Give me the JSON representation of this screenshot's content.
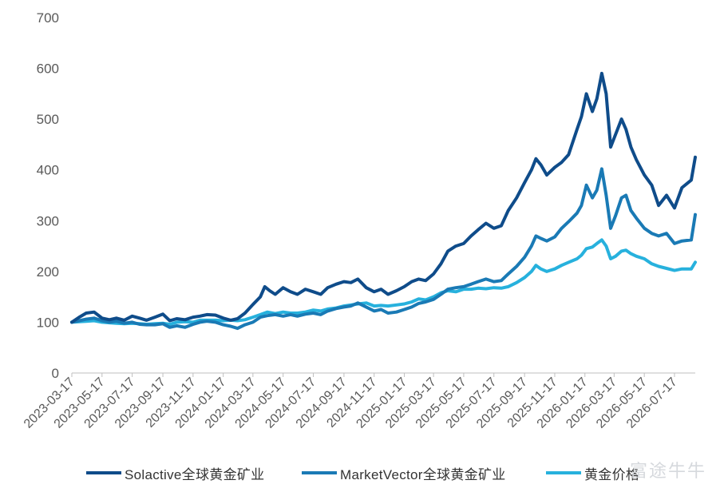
{
  "chart_data": {
    "type": "line",
    "title": "",
    "xlabel": "",
    "ylabel": "",
    "ylim": [
      0,
      700
    ],
    "yticks": [
      0,
      100,
      200,
      300,
      400,
      500,
      600,
      700
    ],
    "x_tick_labels": [
      "2023-03-17",
      "2023-05-17",
      "2023-07-17",
      "2023-09-17",
      "2023-11-17",
      "2024-01-17",
      "2024-03-17",
      "2024-05-17",
      "2024-07-17",
      "2024-09-17",
      "2024-11-17",
      "2025-01-17",
      "2025-03-17",
      "2025-05-17",
      "2025-07-17",
      "2025-09-17",
      "2025-11-17",
      "2026-01-17",
      "2026-03-17",
      "2026-05-17",
      "2026-07-17"
    ],
    "x_start": "2023-03-17",
    "x_end": "2026-08-28",
    "grid": false,
    "legend_position": "bottom",
    "series": [
      {
        "name": "Solactive全球黄金矿业",
        "color": "#0f4c8a",
        "points": [
          [
            "2023-03-17",
            100
          ],
          [
            "2023-04-01",
            110
          ],
          [
            "2023-04-15",
            118
          ],
          [
            "2023-05-01",
            120
          ],
          [
            "2023-05-17",
            108
          ],
          [
            "2023-06-01",
            105
          ],
          [
            "2023-06-15",
            108
          ],
          [
            "2023-07-01",
            104
          ],
          [
            "2023-07-17",
            112
          ],
          [
            "2023-08-01",
            108
          ],
          [
            "2023-08-15",
            104
          ],
          [
            "2023-09-01",
            110
          ],
          [
            "2023-09-17",
            116
          ],
          [
            "2023-10-01",
            103
          ],
          [
            "2023-10-15",
            107
          ],
          [
            "2023-11-01",
            105
          ],
          [
            "2023-11-17",
            110
          ],
          [
            "2023-12-01",
            112
          ],
          [
            "2023-12-15",
            115
          ],
          [
            "2024-01-01",
            114
          ],
          [
            "2024-01-17",
            108
          ],
          [
            "2024-02-01",
            104
          ],
          [
            "2024-02-15",
            107
          ],
          [
            "2024-03-01",
            118
          ],
          [
            "2024-03-17",
            135
          ],
          [
            "2024-04-01",
            150
          ],
          [
            "2024-04-10",
            170
          ],
          [
            "2024-04-20",
            162
          ],
          [
            "2024-05-01",
            155
          ],
          [
            "2024-05-17",
            168
          ],
          [
            "2024-06-01",
            160
          ],
          [
            "2024-06-15",
            155
          ],
          [
            "2024-07-01",
            165
          ],
          [
            "2024-07-17",
            160
          ],
          [
            "2024-08-01",
            155
          ],
          [
            "2024-08-15",
            168
          ],
          [
            "2024-09-01",
            175
          ],
          [
            "2024-09-17",
            180
          ],
          [
            "2024-10-01",
            178
          ],
          [
            "2024-10-15",
            185
          ],
          [
            "2024-11-01",
            168
          ],
          [
            "2024-11-17",
            160
          ],
          [
            "2024-12-01",
            165
          ],
          [
            "2024-12-15",
            155
          ],
          [
            "2025-01-01",
            162
          ],
          [
            "2025-01-17",
            170
          ],
          [
            "2025-02-01",
            180
          ],
          [
            "2025-02-15",
            185
          ],
          [
            "2025-03-01",
            182
          ],
          [
            "2025-03-17",
            195
          ],
          [
            "2025-04-01",
            215
          ],
          [
            "2025-04-15",
            240
          ],
          [
            "2025-05-01",
            250
          ],
          [
            "2025-05-17",
            255
          ],
          [
            "2025-06-01",
            270
          ],
          [
            "2025-06-15",
            282
          ],
          [
            "2025-07-01",
            295
          ],
          [
            "2025-07-17",
            285
          ],
          [
            "2025-08-01",
            290
          ],
          [
            "2025-08-15",
            320
          ],
          [
            "2025-09-01",
            345
          ],
          [
            "2025-09-17",
            375
          ],
          [
            "2025-10-01",
            400
          ],
          [
            "2025-10-10",
            422
          ],
          [
            "2025-10-20",
            410
          ],
          [
            "2025-11-01",
            390
          ],
          [
            "2025-11-17",
            405
          ],
          [
            "2025-12-01",
            415
          ],
          [
            "2025-12-15",
            430
          ],
          [
            "2026-01-01",
            480
          ],
          [
            "2026-01-10",
            505
          ],
          [
            "2026-01-20",
            550
          ],
          [
            "2026-02-01",
            515
          ],
          [
            "2026-02-10",
            540
          ],
          [
            "2026-02-20",
            590
          ],
          [
            "2026-03-01",
            550
          ],
          [
            "2026-03-10",
            445
          ],
          [
            "2026-03-20",
            470
          ],
          [
            "2026-04-01",
            500
          ],
          [
            "2026-04-10",
            480
          ],
          [
            "2026-04-20",
            445
          ],
          [
            "2026-05-01",
            420
          ],
          [
            "2026-05-17",
            390
          ],
          [
            "2026-06-01",
            370
          ],
          [
            "2026-06-15",
            330
          ],
          [
            "2026-07-01",
            350
          ],
          [
            "2026-07-17",
            325
          ],
          [
            "2026-08-01",
            365
          ],
          [
            "2026-08-20",
            380
          ],
          [
            "2026-08-28",
            425
          ]
        ]
      },
      {
        "name": "MarketVector全球黄金矿业",
        "color": "#1a7ab5",
        "points": [
          [
            "2023-03-17",
            100
          ],
          [
            "2023-04-01",
            103
          ],
          [
            "2023-04-15",
            106
          ],
          [
            "2023-05-01",
            108
          ],
          [
            "2023-05-17",
            103
          ],
          [
            "2023-06-01",
            100
          ],
          [
            "2023-06-15",
            102
          ],
          [
            "2023-07-01",
            98
          ],
          [
            "2023-07-17",
            100
          ],
          [
            "2023-08-01",
            96
          ],
          [
            "2023-08-15",
            95
          ],
          [
            "2023-09-01",
            95
          ],
          [
            "2023-09-17",
            97
          ],
          [
            "2023-10-01",
            90
          ],
          [
            "2023-10-15",
            93
          ],
          [
            "2023-11-01",
            90
          ],
          [
            "2023-11-17",
            96
          ],
          [
            "2023-12-01",
            100
          ],
          [
            "2023-12-15",
            102
          ],
          [
            "2024-01-01",
            100
          ],
          [
            "2024-01-17",
            95
          ],
          [
            "2024-02-01",
            92
          ],
          [
            "2024-02-15",
            88
          ],
          [
            "2024-03-01",
            95
          ],
          [
            "2024-03-17",
            100
          ],
          [
            "2024-04-01",
            110
          ],
          [
            "2024-04-15",
            113
          ],
          [
            "2024-05-01",
            115
          ],
          [
            "2024-05-17",
            112
          ],
          [
            "2024-06-01",
            115
          ],
          [
            "2024-06-15",
            112
          ],
          [
            "2024-07-01",
            116
          ],
          [
            "2024-07-17",
            118
          ],
          [
            "2024-08-01",
            115
          ],
          [
            "2024-08-15",
            122
          ],
          [
            "2024-09-01",
            127
          ],
          [
            "2024-09-17",
            130
          ],
          [
            "2024-10-01",
            132
          ],
          [
            "2024-10-15",
            138
          ],
          [
            "2024-11-01",
            130
          ],
          [
            "2024-11-17",
            122
          ],
          [
            "2024-12-01",
            125
          ],
          [
            "2024-12-15",
            118
          ],
          [
            "2025-01-01",
            120
          ],
          [
            "2025-01-17",
            125
          ],
          [
            "2025-02-01",
            130
          ],
          [
            "2025-02-15",
            137
          ],
          [
            "2025-03-01",
            140
          ],
          [
            "2025-03-17",
            145
          ],
          [
            "2025-04-01",
            155
          ],
          [
            "2025-04-15",
            165
          ],
          [
            "2025-05-01",
            168
          ],
          [
            "2025-05-17",
            170
          ],
          [
            "2025-06-01",
            175
          ],
          [
            "2025-06-15",
            180
          ],
          [
            "2025-07-01",
            185
          ],
          [
            "2025-07-17",
            180
          ],
          [
            "2025-08-01",
            182
          ],
          [
            "2025-08-15",
            195
          ],
          [
            "2025-09-01",
            210
          ],
          [
            "2025-09-17",
            228
          ],
          [
            "2025-10-01",
            250
          ],
          [
            "2025-10-10",
            270
          ],
          [
            "2025-10-20",
            265
          ],
          [
            "2025-11-01",
            260
          ],
          [
            "2025-11-17",
            268
          ],
          [
            "2025-12-01",
            285
          ],
          [
            "2025-12-15",
            298
          ],
          [
            "2026-01-01",
            315
          ],
          [
            "2026-01-10",
            330
          ],
          [
            "2026-01-20",
            370
          ],
          [
            "2026-02-01",
            345
          ],
          [
            "2026-02-10",
            360
          ],
          [
            "2026-02-20",
            402
          ],
          [
            "2026-03-01",
            350
          ],
          [
            "2026-03-10",
            285
          ],
          [
            "2026-03-20",
            310
          ],
          [
            "2026-04-01",
            345
          ],
          [
            "2026-04-10",
            350
          ],
          [
            "2026-04-20",
            320
          ],
          [
            "2026-05-01",
            305
          ],
          [
            "2026-05-17",
            285
          ],
          [
            "2026-06-01",
            275
          ],
          [
            "2026-06-15",
            270
          ],
          [
            "2026-07-01",
            275
          ],
          [
            "2026-07-17",
            255
          ],
          [
            "2026-08-01",
            260
          ],
          [
            "2026-08-20",
            262
          ],
          [
            "2026-08-28",
            312
          ]
        ]
      },
      {
        "name": "黄金价格",
        "color": "#27b1dd",
        "points": [
          [
            "2023-03-17",
            100
          ],
          [
            "2023-04-01",
            101
          ],
          [
            "2023-04-15",
            102
          ],
          [
            "2023-05-01",
            103
          ],
          [
            "2023-05-17",
            100
          ],
          [
            "2023-06-01",
            99
          ],
          [
            "2023-06-15",
            98
          ],
          [
            "2023-07-01",
            97
          ],
          [
            "2023-07-17",
            98
          ],
          [
            "2023-08-01",
            97
          ],
          [
            "2023-08-15",
            96
          ],
          [
            "2023-09-01",
            97
          ],
          [
            "2023-09-17",
            98
          ],
          [
            "2023-10-01",
            96
          ],
          [
            "2023-10-15",
            100
          ],
          [
            "2023-11-01",
            101
          ],
          [
            "2023-11-17",
            100
          ],
          [
            "2023-12-01",
            104
          ],
          [
            "2023-12-15",
            104
          ],
          [
            "2024-01-01",
            104
          ],
          [
            "2024-01-17",
            103
          ],
          [
            "2024-02-01",
            104
          ],
          [
            "2024-02-15",
            103
          ],
          [
            "2024-03-01",
            105
          ],
          [
            "2024-03-17",
            110
          ],
          [
            "2024-04-01",
            115
          ],
          [
            "2024-04-15",
            120
          ],
          [
            "2024-05-01",
            117
          ],
          [
            "2024-05-17",
            120
          ],
          [
            "2024-06-01",
            118
          ],
          [
            "2024-06-15",
            118
          ],
          [
            "2024-07-01",
            120
          ],
          [
            "2024-07-17",
            124
          ],
          [
            "2024-08-01",
            122
          ],
          [
            "2024-08-15",
            126
          ],
          [
            "2024-09-01",
            128
          ],
          [
            "2024-09-17",
            132
          ],
          [
            "2024-10-01",
            134
          ],
          [
            "2024-10-15",
            136
          ],
          [
            "2024-11-01",
            138
          ],
          [
            "2024-11-17",
            132
          ],
          [
            "2024-12-01",
            133
          ],
          [
            "2024-12-15",
            132
          ],
          [
            "2025-01-01",
            134
          ],
          [
            "2025-01-17",
            136
          ],
          [
            "2025-02-01",
            140
          ],
          [
            "2025-02-15",
            146
          ],
          [
            "2025-03-01",
            144
          ],
          [
            "2025-03-17",
            150
          ],
          [
            "2025-04-01",
            158
          ],
          [
            "2025-04-15",
            162
          ],
          [
            "2025-05-01",
            160
          ],
          [
            "2025-05-17",
            165
          ],
          [
            "2025-06-01",
            165
          ],
          [
            "2025-06-15",
            167
          ],
          [
            "2025-07-01",
            166
          ],
          [
            "2025-07-17",
            168
          ],
          [
            "2025-08-01",
            167
          ],
          [
            "2025-08-15",
            170
          ],
          [
            "2025-09-01",
            178
          ],
          [
            "2025-09-17",
            188
          ],
          [
            "2025-10-01",
            200
          ],
          [
            "2025-10-10",
            212
          ],
          [
            "2025-10-20",
            205
          ],
          [
            "2025-11-01",
            200
          ],
          [
            "2025-11-17",
            205
          ],
          [
            "2025-12-01",
            212
          ],
          [
            "2025-12-15",
            218
          ],
          [
            "2026-01-01",
            225
          ],
          [
            "2026-01-10",
            232
          ],
          [
            "2026-01-20",
            245
          ],
          [
            "2026-02-01",
            248
          ],
          [
            "2026-02-10",
            255
          ],
          [
            "2026-02-20",
            262
          ],
          [
            "2026-03-01",
            250
          ],
          [
            "2026-03-10",
            225
          ],
          [
            "2026-03-20",
            230
          ],
          [
            "2026-04-01",
            240
          ],
          [
            "2026-04-10",
            242
          ],
          [
            "2026-04-20",
            235
          ],
          [
            "2026-05-01",
            230
          ],
          [
            "2026-05-17",
            225
          ],
          [
            "2026-06-01",
            215
          ],
          [
            "2026-06-15",
            210
          ],
          [
            "2026-07-01",
            206
          ],
          [
            "2026-07-17",
            202
          ],
          [
            "2026-08-01",
            205
          ],
          [
            "2026-08-20",
            205
          ],
          [
            "2026-08-28",
            218
          ]
        ]
      }
    ]
  },
  "legend": {
    "items": [
      {
        "label": "Solactive全球黄金矿业",
        "color": "#0f4c8a"
      },
      {
        "label": "MarketVector全球黄金矿业",
        "color": "#1a7ab5"
      },
      {
        "label": "黄金价格",
        "color": "#27b1dd"
      }
    ]
  },
  "watermark": {
    "text": "富途牛牛"
  }
}
